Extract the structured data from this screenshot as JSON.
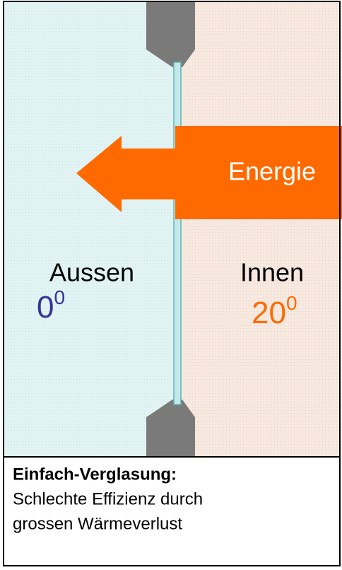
{
  "arrow_label": "Energie",
  "outside": {
    "label": "Aussen",
    "temperature": "0",
    "unit": "0"
  },
  "inside": {
    "label": "Innen",
    "temperature": "20",
    "unit": "0"
  },
  "caption": {
    "title": "Einfach-Verglasung:",
    "lines": [
      "Schlechte Effizienz durch",
      "grossen Wärmeverlust"
    ]
  }
}
